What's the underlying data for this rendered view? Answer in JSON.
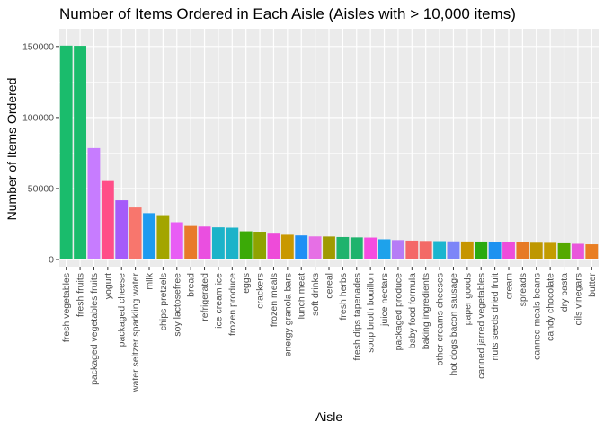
{
  "chart_data": {
    "type": "bar",
    "title": "Number of Items Ordered in Each Aisle (Aisles with > 10,000 items)",
    "xlabel": "Aisle",
    "ylabel": "Number of Items Ordered",
    "ylim": [
      0,
      160000
    ],
    "yticks": [
      0,
      50000,
      100000,
      150000
    ],
    "ytick_labels": [
      "0",
      "50000",
      "100000",
      "150000"
    ],
    "grid": true,
    "legend": "none",
    "categories": [
      "fresh vegetables",
      "fresh fruits",
      "packaged vegetables fruits",
      "yogurt",
      "packaged cheese",
      "water seltzer sparkling water",
      "milk",
      "chips pretzels",
      "soy lactosefree",
      "bread",
      "refrigerated",
      "ice cream ice",
      "frozen produce",
      "eggs",
      "crackers",
      "frozen meals",
      "energy granola bars",
      "lunch meat",
      "soft drinks",
      "cereal",
      "fresh herbs",
      "fresh dips tapenades",
      "soup broth bouillon",
      "juice nectars",
      "packaged produce",
      "baby food formula",
      "baking ingredients",
      "other creams cheeses",
      "hot dogs bacon sausage",
      "paper goods",
      "canned jarred vegetables",
      "nuts seeds dried fruit",
      "cream",
      "spreads",
      "canned meals beans",
      "candy chocolate",
      "dry pasta",
      "oils vinegars",
      "butter"
    ],
    "values": [
      150609,
      150473,
      78493,
      55240,
      41699,
      36617,
      32644,
      31269,
      26240,
      23635,
      23228,
      22676,
      22453,
      19875,
      19592,
      18221,
      17449,
      16957,
      16279,
      16201,
      15838,
      15583,
      15475,
      14247,
      13690,
      13327,
      13088,
      12948,
      12804,
      12713,
      12679,
      12419,
      12375,
      12104,
      11845,
      11763,
      11427,
      11080,
      10721
    ],
    "colors": [
      "#1ABC6C",
      "#1ABC6C",
      "#C77CFF",
      "#FF4E88",
      "#A55BFA",
      "#F8766D",
      "#1E9BF0",
      "#A3A500",
      "#E85DF5",
      "#E87A2A",
      "#EA4FE0",
      "#1CB3C9",
      "#1CB3C9",
      "#3BAA07",
      "#8FA300",
      "#EE4BD9",
      "#C99800",
      "#1E8FF5",
      "#E66FE5",
      "#A09A00",
      "#1FB36D",
      "#1FB36D",
      "#F54CE0",
      "#1EA2EB",
      "#B67CF6",
      "#F46767",
      "#F36966",
      "#1BB5CF",
      "#7D86F8",
      "#C69500",
      "#2AAA10",
      "#1E92F0",
      "#EE4CDB",
      "#E77A25",
      "#BE9700",
      "#C39C00",
      "#55A900",
      "#E956DB",
      "#E97E22"
    ],
    "panel_background": "#EBEBEB",
    "grid_color": "#FFFFFF"
  }
}
